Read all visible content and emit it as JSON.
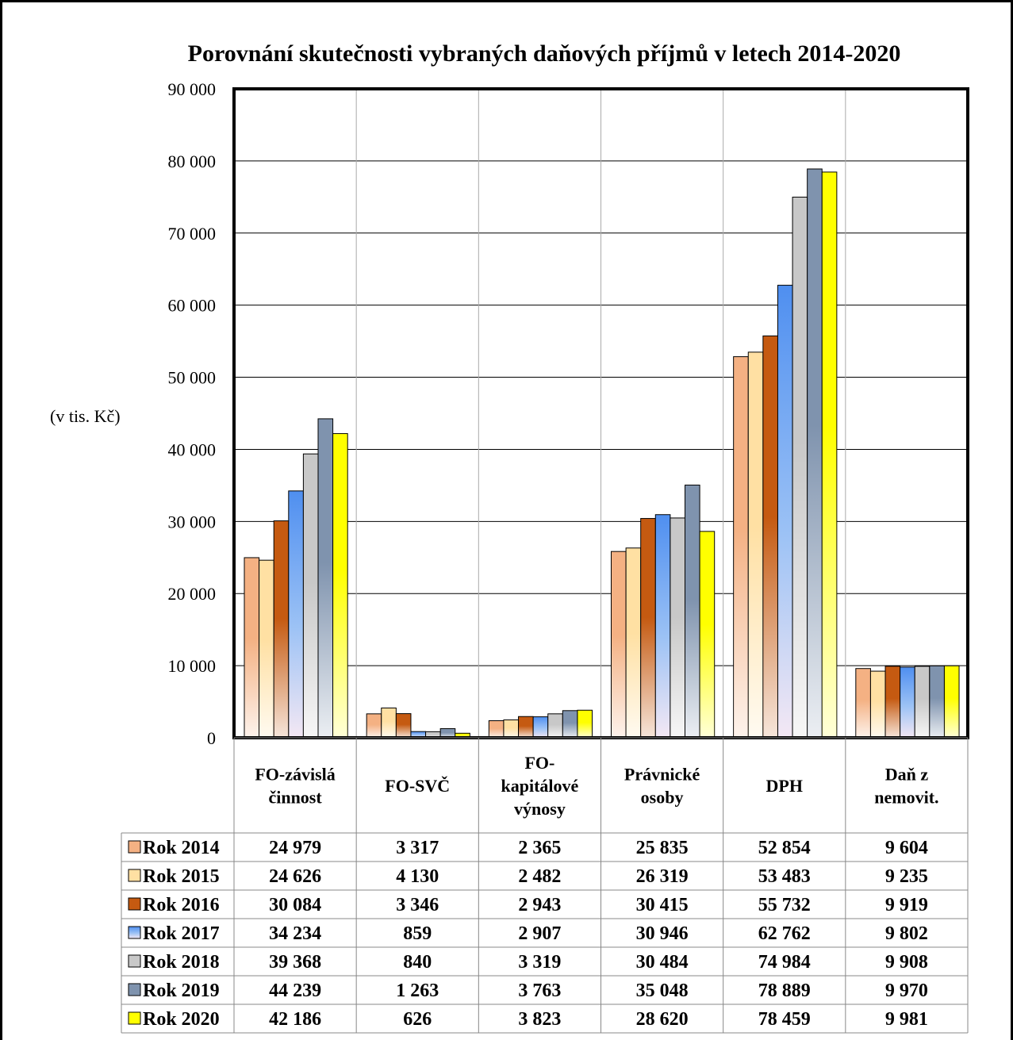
{
  "chart_data": {
    "type": "bar",
    "title": "Porovnání  skutečnosti vybraných daňových příjmů v letech 2014-2020",
    "ylabel": "(v tis. Kč)",
    "ylim": [
      0,
      90000
    ],
    "yticks": [
      "0",
      "10 000",
      "20 000",
      "30 000",
      "40 000",
      "50 000",
      "60 000",
      "70 000",
      "80 000",
      "90 000"
    ],
    "grid": true,
    "categories": [
      [
        "FO-závislá",
        "činnost"
      ],
      [
        "FO-SVČ"
      ],
      [
        "FO-",
        "kapitálové",
        "výnosy"
      ],
      [
        "Právnické",
        "osoby"
      ],
      [
        "DPH"
      ],
      [
        "Daň z",
        "nemovit."
      ]
    ],
    "series": [
      {
        "name": "Rok 2014",
        "color": "#F4B183",
        "values": [
          24979,
          3317,
          2365,
          25835,
          52854,
          9604
        ],
        "labels": [
          "24 979",
          "3 317",
          "2 365",
          "25 835",
          "52 854",
          "9 604"
        ]
      },
      {
        "name": "Rok 2015",
        "color": "#FFE0A3",
        "values": [
          24626,
          4130,
          2482,
          26319,
          53483,
          9235
        ],
        "labels": [
          "24 626",
          "4 130",
          "2 482",
          "26 319",
          "53 483",
          "9 235"
        ]
      },
      {
        "name": "Rok 2016",
        "color": "#C55A11",
        "values": [
          30084,
          3346,
          2943,
          30415,
          55732,
          9919
        ],
        "labels": [
          "30 084",
          "3 346",
          "2 943",
          "30 415",
          "55 732",
          "9 919"
        ]
      },
      {
        "name": "Rok 2017",
        "color": "#5B9BF0",
        "values": [
          34234,
          859,
          2907,
          30946,
          62762,
          9802
        ],
        "labels": [
          "34 234",
          "859",
          "2 907",
          "30 946",
          "62 762",
          "9 802"
        ]
      },
      {
        "name": "Rok 2018",
        "color": "#C8C8C8",
        "values": [
          39368,
          840,
          3319,
          30484,
          74984,
          9908
        ],
        "labels": [
          "39 368",
          "840",
          "3 319",
          "30 484",
          "74 984",
          "9 908"
        ]
      },
      {
        "name": "Rok 2019",
        "color": "#7F93AE",
        "values": [
          44239,
          1263,
          3763,
          35048,
          78889,
          9970
        ],
        "labels": [
          "44 239",
          "1 263",
          "3 763",
          "35 048",
          "78 889",
          "9 970"
        ]
      },
      {
        "name": "Rok 2020",
        "color": "#FFFF00",
        "values": [
          42186,
          626,
          3823,
          28620,
          78459,
          9981
        ],
        "labels": [
          "42 186",
          "626",
          "3 823",
          "28 620",
          "78 459",
          "9 981"
        ]
      }
    ],
    "legend": "data-table-below"
  }
}
